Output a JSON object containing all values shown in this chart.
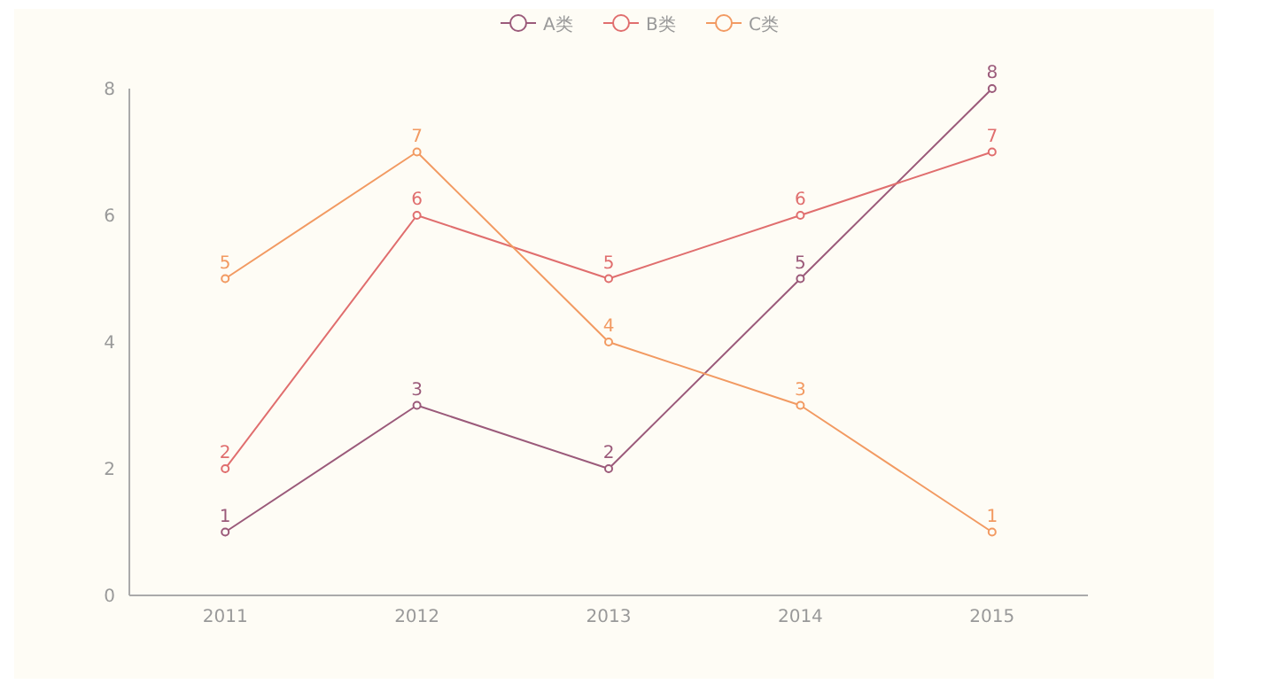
{
  "chart_data": {
    "type": "line",
    "categories": [
      "2011",
      "2012",
      "2013",
      "2014",
      "2015"
    ],
    "series": [
      {
        "name": "A类",
        "color": "#9b5a7a",
        "values": [
          1,
          3,
          2,
          5,
          8
        ]
      },
      {
        "name": "B类",
        "color": "#e06e6e",
        "values": [
          2,
          6,
          5,
          6,
          7
        ]
      },
      {
        "name": "C类",
        "color": "#f29a62",
        "values": [
          5,
          7,
          4,
          3,
          1
        ]
      }
    ],
    "ylim": [
      0,
      8
    ],
    "yticks": [
      0,
      2,
      4,
      6,
      8
    ],
    "grid": false,
    "legend": "top",
    "marker": "circle",
    "line_style": "solid",
    "data_labels": true
  }
}
